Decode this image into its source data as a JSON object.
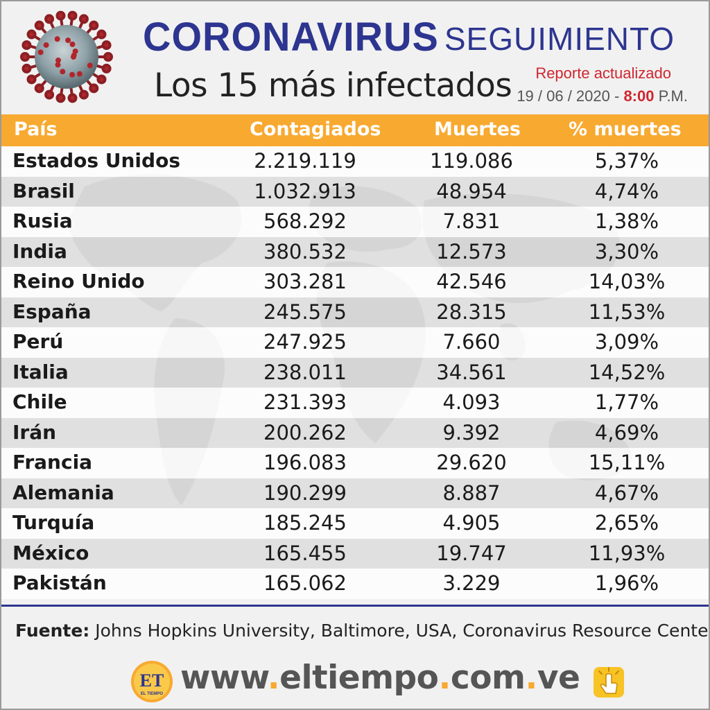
{
  "header": {
    "title_main": "CORONAVIRUS",
    "title_sub": "SEGUIMIENTO",
    "subtitle": "Los 15 más infectados",
    "report_label": "Reporte actualizado",
    "report_date": "19 / 06 / 2020 -",
    "report_time": "8:00",
    "report_period": "P.M."
  },
  "table": {
    "columns": [
      "País",
      "Contagiados",
      "Muertes",
      "% muertes"
    ],
    "rows": [
      [
        "Estados Unidos",
        "2.219.119",
        "119.086",
        "5,37%"
      ],
      [
        "Brasil",
        "1.032.913",
        "48.954",
        "4,74%"
      ],
      [
        "Rusia",
        "568.292",
        "7.831",
        "1,38%"
      ],
      [
        "India",
        "380.532",
        "12.573",
        "3,30%"
      ],
      [
        "Reino Unido",
        "303.281",
        "42.546",
        "14,03%"
      ],
      [
        "España",
        "245.575",
        "28.315",
        "11,53%"
      ],
      [
        "Perú",
        "247.925",
        "7.660",
        "3,09%"
      ],
      [
        "Italia",
        "238.011",
        "34.561",
        "14,52%"
      ],
      [
        "Chile",
        "231.393",
        "4.093",
        "1,77%"
      ],
      [
        "Irán",
        "200.262",
        "9.392",
        "4,69%"
      ],
      [
        "Francia",
        "196.083",
        "29.620",
        "15,11%"
      ],
      [
        "Alemania",
        "190.299",
        "8.887",
        "4,67%"
      ],
      [
        "Turquía",
        "185.245",
        "4.905",
        "2,65%"
      ],
      [
        "México",
        "165.455",
        "19.747",
        "11,93%"
      ],
      [
        "Pakistán",
        "165.062",
        "3.229",
        "1,96%"
      ]
    ]
  },
  "footer": {
    "source_label": "Fuente:",
    "source_text": "Johns Hopkins University, Baltimore, USA, Coronavirus Resource Center",
    "logo_text": "ET",
    "logo_subtext": "EL TIEMPO",
    "website_parts": [
      "www",
      ".",
      "eltiempo",
      ".",
      "com",
      ".",
      "ve"
    ]
  },
  "colors": {
    "title_blue": "#2d3590",
    "header_orange": "#f7a930",
    "accent_red": "#d0262f"
  },
  "icons": {
    "virus": "coronavirus-icon",
    "logo": "el-tiempo-logo-icon",
    "click": "hand-click-icon"
  },
  "chart_data": {
    "type": "table",
    "title": "Los 15 más infectados",
    "columns": [
      "País",
      "Contagiados",
      "Muertes",
      "% muertes"
    ],
    "categories": [
      "Estados Unidos",
      "Brasil",
      "Rusia",
      "India",
      "Reino Unido",
      "España",
      "Perú",
      "Italia",
      "Chile",
      "Irán",
      "Francia",
      "Alemania",
      "Turquía",
      "México",
      "Pakistán"
    ],
    "series": [
      {
        "name": "Contagiados",
        "values": [
          2219119,
          1032913,
          568292,
          380532,
          303281,
          245575,
          247925,
          238011,
          231393,
          200262,
          196083,
          190299,
          185245,
          165455,
          165062
        ]
      },
      {
        "name": "Muertes",
        "values": [
          119086,
          48954,
          7831,
          12573,
          42546,
          28315,
          7660,
          34561,
          4093,
          9392,
          29620,
          8887,
          4905,
          19747,
          3229
        ]
      },
      {
        "name": "% muertes",
        "values": [
          5.37,
          4.74,
          1.38,
          3.3,
          14.03,
          11.53,
          3.09,
          14.52,
          1.77,
          4.69,
          15.11,
          4.67,
          2.65,
          11.93,
          1.96
        ]
      }
    ]
  }
}
